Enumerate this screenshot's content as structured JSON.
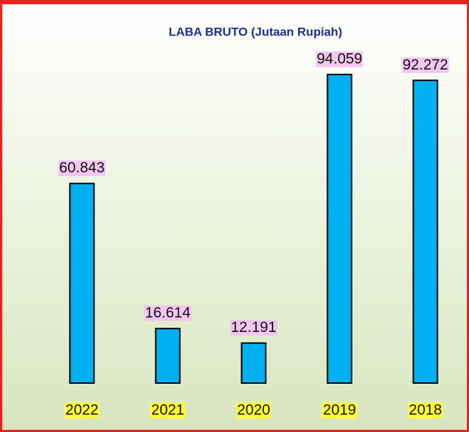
{
  "chart_data": {
    "type": "bar",
    "title": "LABA BRUTO (Jutaan Rupiah)",
    "categories": [
      "2022",
      "2021",
      "2020",
      "2019",
      "2018"
    ],
    "values": [
      60843,
      16614,
      12191,
      94059,
      92272
    ],
    "value_labels": [
      "60.843",
      "16.614",
      "12.191",
      "94.059",
      "92.272"
    ],
    "color": "#00b0f0"
  }
}
